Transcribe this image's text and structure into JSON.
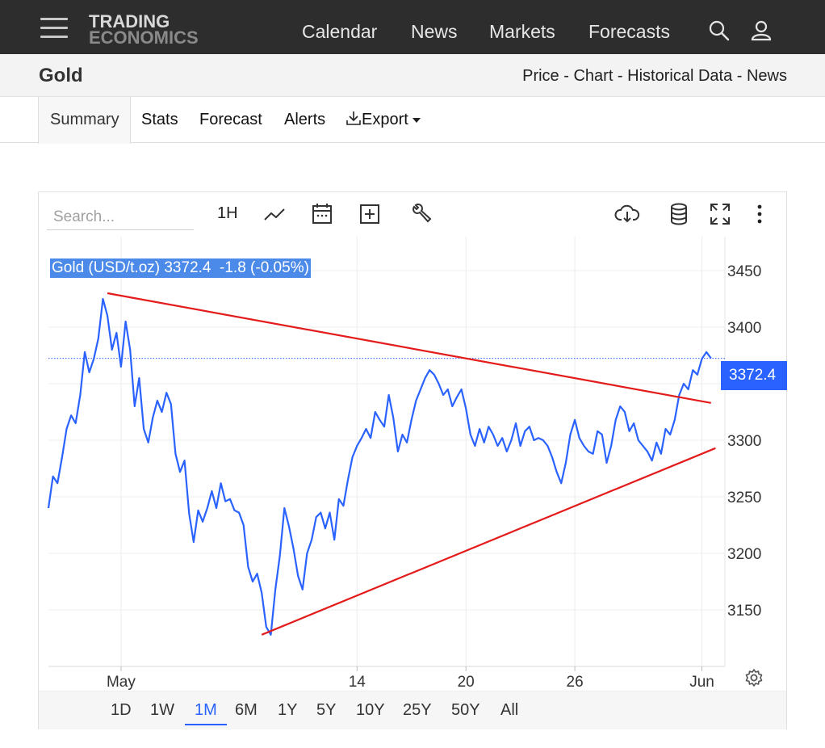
{
  "header": {
    "logo_line1": "TRADING",
    "logo_line2": "ECONOMICS",
    "nav": [
      "Calendar",
      "News",
      "Markets",
      "Forecasts"
    ],
    "icons": [
      "search-icon",
      "user-icon",
      "hamburger-icon"
    ]
  },
  "subheader": {
    "title": "Gold",
    "links": [
      "Price",
      "Chart",
      "Historical Data",
      "News"
    ],
    "separator": " - "
  },
  "tabs": [
    "Summary",
    "Stats",
    "Forecast",
    "Alerts",
    "Export"
  ],
  "active_tab": "Summary",
  "chart_toolbar": {
    "search_placeholder": "Search...",
    "interval": "1H",
    "icons": [
      "line-chart-icon",
      "calendar-icon",
      "add-icon",
      "wrench-icon",
      "cloud-download-icon",
      "database-icon",
      "fullscreen-icon",
      "more-icon",
      "settings-icon"
    ]
  },
  "ranges": [
    "1D",
    "1W",
    "1M",
    "6M",
    "1Y",
    "5Y",
    "10Y",
    "25Y",
    "50Y",
    "All"
  ],
  "active_range": "1M",
  "colors": {
    "line": "#2962ff",
    "trend": "#e41b1b",
    "header_bg": "#2d2d2d",
    "label_bg": "#4b8ae8"
  },
  "chart_data": {
    "type": "line",
    "legend_text": "Gold (USD/t.oz) 3372.4  -1.8 (-0.05%)",
    "last_value_label": "3372.4",
    "last_value": 3372.4,
    "ylim": [
      3100,
      3480
    ],
    "y_ticks": [
      3150,
      3200,
      3250,
      3300,
      3350,
      3400,
      3450
    ],
    "x_range": [
      "2025-04-27",
      "2025-06-03"
    ],
    "x_ticks": [
      {
        "label": "May",
        "date": "2025-05-01"
      },
      {
        "label": "14",
        "date": "2025-05-14"
      },
      {
        "label": "20",
        "date": "2025-05-20"
      },
      {
        "label": "26",
        "date": "2025-05-26"
      },
      {
        "label": "Jun",
        "date": "2025-06-02"
      }
    ],
    "series": [
      {
        "values": [
          [
            "2025-04-27T00:00",
            3240
          ],
          [
            "2025-04-27T06:00",
            3268
          ],
          [
            "2025-04-27T12:00",
            3262
          ],
          [
            "2025-04-27T18:00",
            3285
          ],
          [
            "2025-04-28T00:00",
            3310
          ],
          [
            "2025-04-28T06:00",
            3322
          ],
          [
            "2025-04-28T12:00",
            3315
          ],
          [
            "2025-04-28T18:00",
            3340
          ],
          [
            "2025-04-29T00:00",
            3378
          ],
          [
            "2025-04-29T06:00",
            3360
          ],
          [
            "2025-04-29T12:00",
            3372
          ],
          [
            "2025-04-29T18:00",
            3390
          ],
          [
            "2025-04-30T00:00",
            3425
          ],
          [
            "2025-04-30T06:00",
            3410
          ],
          [
            "2025-04-30T12:00",
            3380
          ],
          [
            "2025-04-30T18:00",
            3395
          ],
          [
            "2025-05-01T00:00",
            3365
          ],
          [
            "2025-05-01T06:00",
            3405
          ],
          [
            "2025-05-01T12:00",
            3380
          ],
          [
            "2025-05-01T18:00",
            3330
          ],
          [
            "2025-05-02T00:00",
            3355
          ],
          [
            "2025-05-02T06:00",
            3310
          ],
          [
            "2025-05-02T12:00",
            3298
          ],
          [
            "2025-05-02T18:00",
            3320
          ],
          [
            "2025-05-03T00:00",
            3335
          ],
          [
            "2025-05-03T06:00",
            3325
          ],
          [
            "2025-05-03T12:00",
            3342
          ],
          [
            "2025-05-03T18:00",
            3332
          ],
          [
            "2025-05-04T00:00",
            3288
          ],
          [
            "2025-05-04T06:00",
            3272
          ],
          [
            "2025-05-04T12:00",
            3282
          ],
          [
            "2025-05-04T18:00",
            3235
          ],
          [
            "2025-05-05T00:00",
            3210
          ],
          [
            "2025-05-05T06:00",
            3238
          ],
          [
            "2025-05-05T12:00",
            3228
          ],
          [
            "2025-05-05T18:00",
            3240
          ],
          [
            "2025-05-06T00:00",
            3255
          ],
          [
            "2025-05-06T06:00",
            3240
          ],
          [
            "2025-05-06T12:00",
            3262
          ],
          [
            "2025-05-06T18:00",
            3246
          ],
          [
            "2025-05-07T00:00",
            3248
          ],
          [
            "2025-05-07T06:00",
            3238
          ],
          [
            "2025-05-07T12:00",
            3236
          ],
          [
            "2025-05-07T18:00",
            3225
          ],
          [
            "2025-05-08T00:00",
            3188
          ],
          [
            "2025-05-08T06:00",
            3175
          ],
          [
            "2025-05-08T12:00",
            3182
          ],
          [
            "2025-05-08T18:00",
            3165
          ],
          [
            "2025-05-09T00:00",
            3135
          ],
          [
            "2025-05-09T06:00",
            3128
          ],
          [
            "2025-05-09T12:00",
            3168
          ],
          [
            "2025-05-09T18:00",
            3198
          ],
          [
            "2025-05-10T00:00",
            3240
          ],
          [
            "2025-05-10T06:00",
            3224
          ],
          [
            "2025-05-10T12:00",
            3204
          ],
          [
            "2025-05-10T18:00",
            3180
          ],
          [
            "2025-05-11T00:00",
            3168
          ],
          [
            "2025-05-11T06:00",
            3200
          ],
          [
            "2025-05-11T12:00",
            3212
          ],
          [
            "2025-05-11T18:00",
            3232
          ],
          [
            "2025-05-12T00:00",
            3236
          ],
          [
            "2025-05-12T06:00",
            3222
          ],
          [
            "2025-05-12T12:00",
            3236
          ],
          [
            "2025-05-12T18:00",
            3212
          ],
          [
            "2025-05-13T00:00",
            3248
          ],
          [
            "2025-05-13T06:00",
            3242
          ],
          [
            "2025-05-13T12:00",
            3265
          ],
          [
            "2025-05-13T18:00",
            3285
          ],
          [
            "2025-05-14T00:00",
            3295
          ],
          [
            "2025-05-14T06:00",
            3302
          ],
          [
            "2025-05-14T12:00",
            3310
          ],
          [
            "2025-05-14T18:00",
            3302
          ],
          [
            "2025-05-15T00:00",
            3325
          ],
          [
            "2025-05-15T06:00",
            3318
          ],
          [
            "2025-05-15T12:00",
            3312
          ],
          [
            "2025-05-15T18:00",
            3340
          ],
          [
            "2025-05-16T00:00",
            3320
          ],
          [
            "2025-05-16T06:00",
            3290
          ],
          [
            "2025-05-16T12:00",
            3305
          ],
          [
            "2025-05-16T18:00",
            3298
          ],
          [
            "2025-05-17T00:00",
            3318
          ],
          [
            "2025-05-17T06:00",
            3335
          ],
          [
            "2025-05-17T12:00",
            3345
          ],
          [
            "2025-05-17T18:00",
            3355
          ],
          [
            "2025-05-18T00:00",
            3362
          ],
          [
            "2025-05-18T06:00",
            3358
          ],
          [
            "2025-05-18T12:00",
            3350
          ],
          [
            "2025-05-18T18:00",
            3340
          ],
          [
            "2025-05-19T00:00",
            3345
          ],
          [
            "2025-05-19T06:00",
            3330
          ],
          [
            "2025-05-19T12:00",
            3338
          ],
          [
            "2025-05-19T18:00",
            3345
          ],
          [
            "2025-05-20T00:00",
            3328
          ],
          [
            "2025-05-20T06:00",
            3305
          ],
          [
            "2025-05-20T12:00",
            3295
          ],
          [
            "2025-05-20T18:00",
            3310
          ],
          [
            "2025-05-21T00:00",
            3298
          ],
          [
            "2025-05-21T06:00",
            3312
          ],
          [
            "2025-05-21T12:00",
            3305
          ],
          [
            "2025-05-21T18:00",
            3295
          ],
          [
            "2025-05-22T00:00",
            3302
          ],
          [
            "2025-05-22T06:00",
            3290
          ],
          [
            "2025-05-22T12:00",
            3300
          ],
          [
            "2025-05-22T18:00",
            3315
          ],
          [
            "2025-05-23T00:00",
            3295
          ],
          [
            "2025-05-23T06:00",
            3308
          ],
          [
            "2025-05-23T12:00",
            3312
          ],
          [
            "2025-05-23T18:00",
            3300
          ],
          [
            "2025-05-24T00:00",
            3302
          ],
          [
            "2025-05-24T06:00",
            3300
          ],
          [
            "2025-05-24T12:00",
            3295
          ],
          [
            "2025-05-24T18:00",
            3285
          ],
          [
            "2025-05-25T00:00",
            3272
          ],
          [
            "2025-05-25T06:00",
            3262
          ],
          [
            "2025-05-25T12:00",
            3280
          ],
          [
            "2025-05-25T18:00",
            3305
          ],
          [
            "2025-05-26T00:00",
            3318
          ],
          [
            "2025-05-26T06:00",
            3302
          ],
          [
            "2025-05-26T12:00",
            3295
          ],
          [
            "2025-05-26T18:00",
            3290
          ],
          [
            "2025-05-27T00:00",
            3288
          ],
          [
            "2025-05-27T06:00",
            3308
          ],
          [
            "2025-05-27T12:00",
            3305
          ],
          [
            "2025-05-27T18:00",
            3280
          ],
          [
            "2025-05-28T00:00",
            3295
          ],
          [
            "2025-05-28T06:00",
            3318
          ],
          [
            "2025-05-28T12:00",
            3330
          ],
          [
            "2025-05-28T18:00",
            3325
          ],
          [
            "2025-05-29T00:00",
            3308
          ],
          [
            "2025-05-29T06:00",
            3315
          ],
          [
            "2025-05-29T12:00",
            3300
          ],
          [
            "2025-05-29T18:00",
            3295
          ],
          [
            "2025-05-30T00:00",
            3290
          ],
          [
            "2025-05-30T06:00",
            3282
          ],
          [
            "2025-05-30T12:00",
            3298
          ],
          [
            "2025-05-30T18:00",
            3288
          ],
          [
            "2025-05-31T00:00",
            3310
          ],
          [
            "2025-05-31T06:00",
            3305
          ],
          [
            "2025-05-31T12:00",
            3318
          ],
          [
            "2025-05-31T18:00",
            3340
          ],
          [
            "2025-06-01T00:00",
            3350
          ],
          [
            "2025-06-01T06:00",
            3345
          ],
          [
            "2025-06-01T12:00",
            3362
          ],
          [
            "2025-06-01T18:00",
            3358
          ],
          [
            "2025-06-02T00:00",
            3372
          ],
          [
            "2025-06-02T06:00",
            3378
          ],
          [
            "2025-06-02T12:00",
            3372.4
          ]
        ]
      }
    ],
    "trend_lines": [
      {
        "from": [
          "2025-04-30T06:00",
          3430
        ],
        "to": [
          "2025-06-02T12:00",
          3333
        ]
      },
      {
        "from": [
          "2025-05-08T18:00",
          3128
        ],
        "to": [
          "2025-06-02T18:00",
          3293
        ]
      }
    ]
  }
}
